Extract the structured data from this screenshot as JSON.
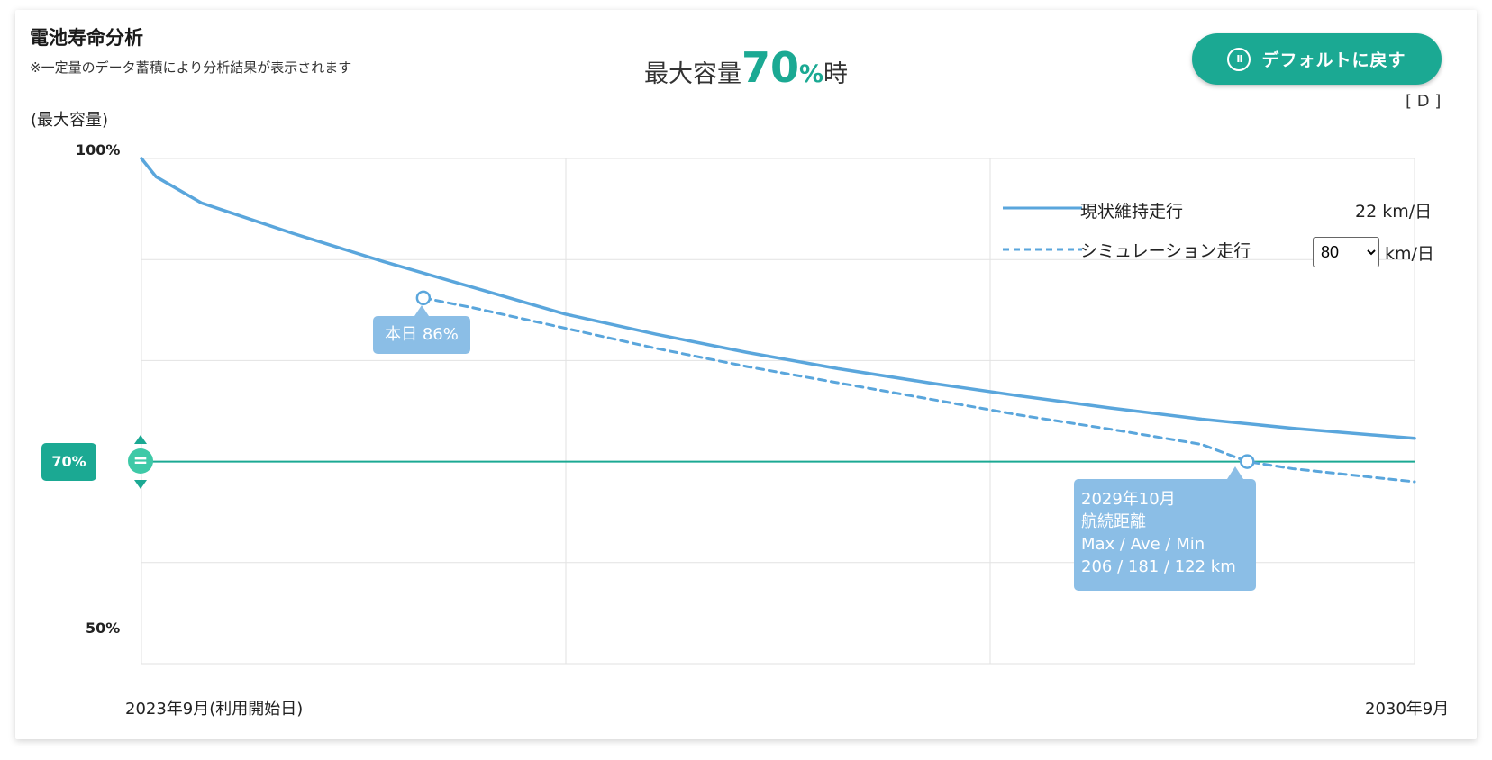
{
  "header": {
    "title": "電池寿命分析",
    "subtitle": "※一定量のデータ蓄積により分析結果が表示されます",
    "headline_prefix": "最大容量",
    "headline_value": "70",
    "headline_unit": "%",
    "headline_suffix": "時",
    "reset_button": "デフォルトに戻す",
    "reset_icon": "pause-circle-icon",
    "d_label": "[ D ]"
  },
  "legend": {
    "current_label": "現状維持走行",
    "current_rate": "22 km/日",
    "sim_label": "シミュレーション走行",
    "sim_value": "80",
    "sim_unit": "km/日",
    "sim_options": [
      "80"
    ]
  },
  "tooltips": {
    "today": "本日 86%",
    "end_date": "2029年10月",
    "end_title": "航続距離",
    "end_header": "Max / Ave / Min",
    "end_values": "206 / 181 / 122 km"
  },
  "threshold": {
    "label": "70%",
    "value": 70,
    "handle_icon": "equals-drag-icon"
  },
  "colors": {
    "accent": "#1ba993",
    "line": "#5aa6dc",
    "tooltip": "#8bbee6"
  },
  "chart_data": {
    "type": "line",
    "ylabel": "(最大容量)",
    "xlabel": "",
    "ylim": [
      50,
      100
    ],
    "y_ticks": [
      "100%",
      "50%"
    ],
    "x_ticks": [
      "2023年9月(利用開始日)",
      "2030年9月"
    ],
    "x_range_years": [
      2023.67,
      2030.67
    ],
    "grid": true,
    "legend_position": "top-right",
    "series": [
      {
        "name": "現状維持走行",
        "style": "solid",
        "x": [
          2023.67,
          2023.75,
          2024.0,
          2024.5,
          2025.0,
          2025.5,
          2026.0,
          2026.5,
          2027.0,
          2027.5,
          2028.0,
          2028.5,
          2029.0,
          2029.5,
          2030.0,
          2030.67
        ],
        "y": [
          100,
          98.2,
          95.6,
          92.6,
          89.8,
          87.2,
          84.6,
          82.6,
          80.8,
          79.2,
          77.8,
          76.5,
          75.3,
          74.2,
          73.3,
          72.3
        ]
      },
      {
        "name": "シミュレーション走行",
        "style": "dashed",
        "x": [
          2025.22,
          2025.5,
          2026.0,
          2026.5,
          2027.0,
          2027.5,
          2028.0,
          2028.5,
          2029.0,
          2029.5,
          2029.75,
          2030.0,
          2030.67
        ],
        "y": [
          86.2,
          85.2,
          83.2,
          81.2,
          79.4,
          77.8,
          76.2,
          74.6,
          73.2,
          71.7,
          70.0,
          69.3,
          68.0
        ]
      }
    ],
    "markers": [
      {
        "label": "本日",
        "x": 2025.22,
        "y": 86.2
      },
      {
        "label": "2029年10月",
        "x": 2029.75,
        "y": 70
      }
    ]
  }
}
